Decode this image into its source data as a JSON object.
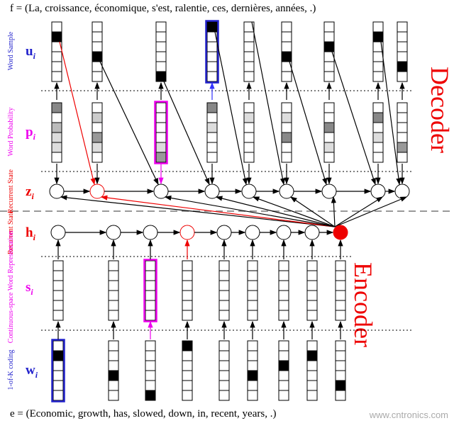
{
  "header": {
    "target_sentence": "f = (La, croissance, économique, s'est, ralentie, ces, dernières, années, .)"
  },
  "footer": {
    "source_sentence": "e = (Economic, growth, has, slowed, down, in, recent, years, .)",
    "watermark": "www.cntronics.com"
  },
  "sections": {
    "decoder": "Decoder",
    "encoder": "Encoder"
  },
  "rows": [
    {
      "label": "Word Sample",
      "symbol": "u",
      "sub": "i"
    },
    {
      "label": "Word Probability",
      "symbol": "p",
      "sub": "i"
    },
    {
      "label": "Recurrent State",
      "symbol": "z",
      "sub": "i"
    },
    {
      "label": "Recurrent State",
      "symbol": "h",
      "sub": "i"
    },
    {
      "label": "Continuous-space Word Representation",
      "symbol": "s",
      "sub": "i"
    },
    {
      "label": "1-of-K coding",
      "symbol": "w",
      "sub": "i"
    }
  ]
}
